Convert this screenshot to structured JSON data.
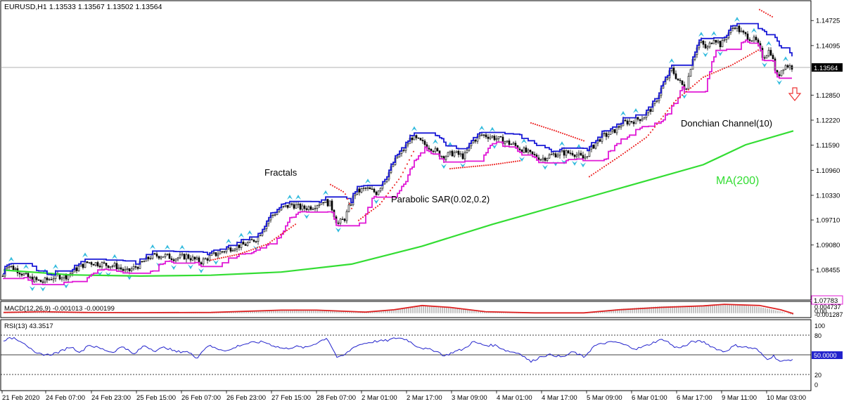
{
  "header": {
    "symbol": "EURUSD,H1",
    "ohlc": "1.13533 1.13567 1.13502 1.13564"
  },
  "colors": {
    "frame": "#000000",
    "donchian_upper": "#1a1ad6",
    "donchian_lower": "#e01ad6",
    "ma": "#33dd33",
    "sar": "#ee3333",
    "fractal": "#33bbdd",
    "macd_hist": "#888888",
    "macd_signal": "#dd2222",
    "rsi": "#2222cc",
    "arrow": "#ee3333",
    "price_line": "#999999"
  },
  "annotations": {
    "fractals": "Fractals",
    "sar": "Parabolic SAR(0.02,0.2)",
    "donchian": "Donchian Channel(10)",
    "ma": "MA(200)",
    "signal_arrow": "down-arrow-icon"
  },
  "main_axis": {
    "ticks": [
      "1.14725",
      "1.14095",
      "1.12850",
      "1.12220",
      "1.11590",
      "1.10960",
      "1.10330",
      "1.09710",
      "1.09080",
      "1.08455"
    ],
    "current": "1.13564",
    "low_label": "1.07783"
  },
  "macd": {
    "label": "MACD(12,26,9) -0.001013 -0.000199",
    "ticks": [
      "0.004737",
      "0.00",
      "-0.001287"
    ]
  },
  "rsi": {
    "label": "RSI(13) 43.3517",
    "ticks": [
      "100",
      "80",
      "50.0000",
      "20",
      "0"
    ]
  },
  "x_axis": {
    "ticks": [
      "21 Feb 2020",
      "24 Feb 07:00",
      "24 Feb 23:00",
      "25 Feb 15:00",
      "26 Feb 07:00",
      "26 Feb 23:00",
      "27 Feb 15:00",
      "28 Feb 07:00",
      "2 Mar 01:00",
      "2 Mar 17:00",
      "3 Mar 09:00",
      "4 Mar 01:00",
      "4 Mar 17:00",
      "5 Mar 09:00",
      "6 Mar 01:00",
      "6 Mar 17:00",
      "9 Mar 11:00",
      "10 Mar 03:00"
    ]
  },
  "chart_data": {
    "type": "candlestick",
    "title": "EURUSD,H1",
    "ylim": [
      1.0775,
      1.151
    ],
    "close_path": [
      [
        0,
        1.08
      ],
      [
        8,
        1.086
      ],
      [
        25,
        1.0845
      ],
      [
        40,
        1.0825
      ],
      [
        60,
        1.0815
      ],
      [
        80,
        1.083
      ],
      [
        95,
        1.083
      ],
      [
        110,
        1.085
      ],
      [
        125,
        1.0865
      ],
      [
        145,
        1.086
      ],
      [
        165,
        1.0855
      ],
      [
        180,
        1.084
      ],
      [
        200,
        1.086
      ],
      [
        215,
        1.088
      ],
      [
        230,
        1.0882
      ],
      [
        250,
        1.0875
      ],
      [
        265,
        1.088
      ],
      [
        285,
        1.0865
      ],
      [
        300,
        1.088
      ],
      [
        320,
        1.0895
      ],
      [
        335,
        1.0905
      ],
      [
        350,
        1.091
      ],
      [
        365,
        1.0925
      ],
      [
        385,
        1.098
      ],
      [
        400,
        1.1
      ],
      [
        415,
        1.101
      ],
      [
        430,
        1.1
      ],
      [
        445,
        1.1005
      ],
      [
        460,
        1.102
      ],
      [
        470,
        1.101
      ],
      [
        480,
        1.096
      ],
      [
        490,
        1.0975
      ],
      [
        505,
        1.104
      ],
      [
        520,
        1.105
      ],
      [
        535,
        1.104
      ],
      [
        550,
        1.108
      ],
      [
        565,
        1.113
      ],
      [
        575,
        1.115
      ],
      [
        585,
        1.118
      ],
      [
        600,
        1.1165
      ],
      [
        615,
        1.115
      ],
      [
        630,
        1.113
      ],
      [
        645,
        1.114
      ],
      [
        660,
        1.113
      ],
      [
        672,
        1.117
      ],
      [
        685,
        1.1185
      ],
      [
        700,
        1.118
      ],
      [
        715,
        1.117
      ],
      [
        730,
        1.116
      ],
      [
        740,
        1.115
      ],
      [
        755,
        1.1135
      ],
      [
        770,
        1.1125
      ],
      [
        785,
        1.1135
      ],
      [
        800,
        1.114
      ],
      [
        815,
        1.114
      ],
      [
        830,
        1.1125
      ],
      [
        840,
        1.115
      ],
      [
        855,
        1.118
      ],
      [
        870,
        1.119
      ],
      [
        885,
        1.1215
      ],
      [
        900,
        1.122
      ],
      [
        915,
        1.123
      ],
      [
        930,
        1.126
      ],
      [
        940,
        1.13
      ],
      [
        955,
        1.135
      ],
      [
        965,
        1.132
      ],
      [
        975,
        1.13
      ],
      [
        985,
        1.138
      ],
      [
        995,
        1.142
      ],
      [
        1005,
        1.14
      ],
      [
        1015,
        1.143
      ],
      [
        1025,
        1.141
      ],
      [
        1035,
        1.144
      ],
      [
        1045,
        1.146
      ],
      [
        1055,
        1.144
      ],
      [
        1065,
        1.143
      ],
      [
        1075,
        1.142
      ],
      [
        1085,
        1.138
      ],
      [
        1095,
        1.14
      ],
      [
        1105,
        1.133
      ],
      [
        1115,
        1.136
      ],
      [
        1125,
        1.1356
      ]
    ],
    "ma_path": [
      [
        5,
        1.0845
      ],
      [
        100,
        1.0833
      ],
      [
        200,
        1.083
      ],
      [
        300,
        1.0832
      ],
      [
        400,
        1.084
      ],
      [
        500,
        1.086
      ],
      [
        600,
        1.0905
      ],
      [
        700,
        1.096
      ],
      [
        800,
        1.101
      ],
      [
        900,
        1.106
      ],
      [
        1000,
        1.111
      ],
      [
        1060,
        1.116
      ],
      [
        1128,
        1.1195
      ]
    ],
    "sar_segments": [
      [
        [
          300,
          1.087
        ],
        [
          340,
          1.0885
        ],
        [
          380,
          1.091
        ],
        [
          420,
          1.096
        ]
      ],
      [
        [
          470,
          1.106
        ],
        [
          490,
          1.104
        ],
        [
          500,
          1.1
        ]
      ],
      [
        [
          510,
          1.097
        ],
        [
          540,
          1.101
        ],
        [
          570,
          1.108
        ],
        [
          590,
          1.115
        ]
      ],
      [
        [
          640,
          1.11
        ],
        [
          700,
          1.111
        ],
        [
          740,
          1.112
        ]
      ],
      [
        [
          755,
          1.1215
        ],
        [
          790,
          1.1195
        ],
        [
          830,
          1.117
        ]
      ],
      [
        [
          838,
          1.108
        ],
        [
          880,
          1.113
        ],
        [
          920,
          1.118
        ],
        [
          960,
          1.127
        ],
        [
          1000,
          1.133
        ],
        [
          1040,
          1.136
        ],
        [
          1080,
          1.14
        ]
      ],
      [
        [
          1080,
          1.15
        ],
        [
          1100,
          1.148
        ]
      ]
    ],
    "macd_hist_env": [
      [
        5,
        0.0002
      ],
      [
        60,
        0.001
      ],
      [
        120,
        0.0003
      ],
      [
        200,
        0.0002
      ],
      [
        260,
        0.0001
      ],
      [
        330,
        0.0006
      ],
      [
        420,
        0.002
      ],
      [
        470,
        0.0012
      ],
      [
        520,
        0.0004
      ],
      [
        560,
        0.0018
      ],
      [
        600,
        0.0042
      ],
      [
        640,
        0.003
      ],
      [
        690,
        0.0006
      ],
      [
        750,
        0.0003
      ],
      [
        830,
        0.0003
      ],
      [
        880,
        0.0022
      ],
      [
        940,
        0.0036
      ],
      [
        1000,
        0.004
      ],
      [
        1040,
        0.0046
      ],
      [
        1080,
        0.0032
      ],
      [
        1110,
        0.001
      ],
      [
        1128,
        -0.001
      ]
    ],
    "macd_signal": [
      [
        5,
        0.0004
      ],
      [
        60,
        0.0008
      ],
      [
        120,
        0.0004
      ],
      [
        200,
        0.0003
      ],
      [
        300,
        0.0004
      ],
      [
        400,
        0.0016
      ],
      [
        450,
        0.0016
      ],
      [
        520,
        0.0006
      ],
      [
        560,
        0.0018
      ],
      [
        600,
        0.004
      ],
      [
        640,
        0.003
      ],
      [
        690,
        0.0008
      ],
      [
        760,
        0.0002
      ],
      [
        830,
        0.0002
      ],
      [
        880,
        0.0018
      ],
      [
        940,
        0.003
      ],
      [
        1000,
        0.0038
      ],
      [
        1030,
        0.0046
      ],
      [
        1080,
        0.004
      ],
      [
        1110,
        0.0018
      ],
      [
        1128,
        -0.0002
      ]
    ],
    "rsi_path": [
      [
        5,
        75
      ],
      [
        20,
        79
      ],
      [
        35,
        70
      ],
      [
        50,
        52
      ],
      [
        70,
        50
      ],
      [
        85,
        55
      ],
      [
        100,
        64
      ],
      [
        115,
        54
      ],
      [
        125,
        67
      ],
      [
        145,
        60
      ],
      [
        160,
        54
      ],
      [
        175,
        65
      ],
      [
        190,
        50
      ],
      [
        205,
        66
      ],
      [
        220,
        57
      ],
      [
        235,
        63
      ],
      [
        250,
        55
      ],
      [
        265,
        56
      ],
      [
        280,
        45
      ],
      [
        295,
        66
      ],
      [
        310,
        60
      ],
      [
        325,
        57
      ],
      [
        340,
        66
      ],
      [
        355,
        70
      ],
      [
        375,
        72
      ],
      [
        390,
        65
      ],
      [
        405,
        60
      ],
      [
        420,
        64
      ],
      [
        435,
        62
      ],
      [
        450,
        70
      ],
      [
        465,
        79
      ],
      [
        480,
        44
      ],
      [
        490,
        50
      ],
      [
        505,
        65
      ],
      [
        520,
        70
      ],
      [
        535,
        73
      ],
      [
        550,
        74
      ],
      [
        565,
        79
      ],
      [
        578,
        76
      ],
      [
        592,
        65
      ],
      [
        605,
        60
      ],
      [
        620,
        57
      ],
      [
        632,
        48
      ],
      [
        645,
        55
      ],
      [
        660,
        60
      ],
      [
        672,
        72
      ],
      [
        690,
        66
      ],
      [
        705,
        66
      ],
      [
        720,
        57
      ],
      [
        740,
        52
      ],
      [
        755,
        38
      ],
      [
        770,
        48
      ],
      [
        785,
        50
      ],
      [
        800,
        46
      ],
      [
        815,
        55
      ],
      [
        830,
        46
      ],
      [
        845,
        65
      ],
      [
        860,
        70
      ],
      [
        875,
        72
      ],
      [
        890,
        66
      ],
      [
        905,
        60
      ],
      [
        920,
        66
      ],
      [
        935,
        74
      ],
      [
        945,
        76
      ],
      [
        960,
        62
      ],
      [
        975,
        65
      ],
      [
        985,
        73
      ],
      [
        1000,
        72
      ],
      [
        1015,
        62
      ],
      [
        1030,
        55
      ],
      [
        1045,
        66
      ],
      [
        1060,
        63
      ],
      [
        1075,
        60
      ],
      [
        1090,
        43
      ],
      [
        1100,
        48
      ],
      [
        1110,
        38
      ],
      [
        1128,
        43
      ]
    ]
  }
}
